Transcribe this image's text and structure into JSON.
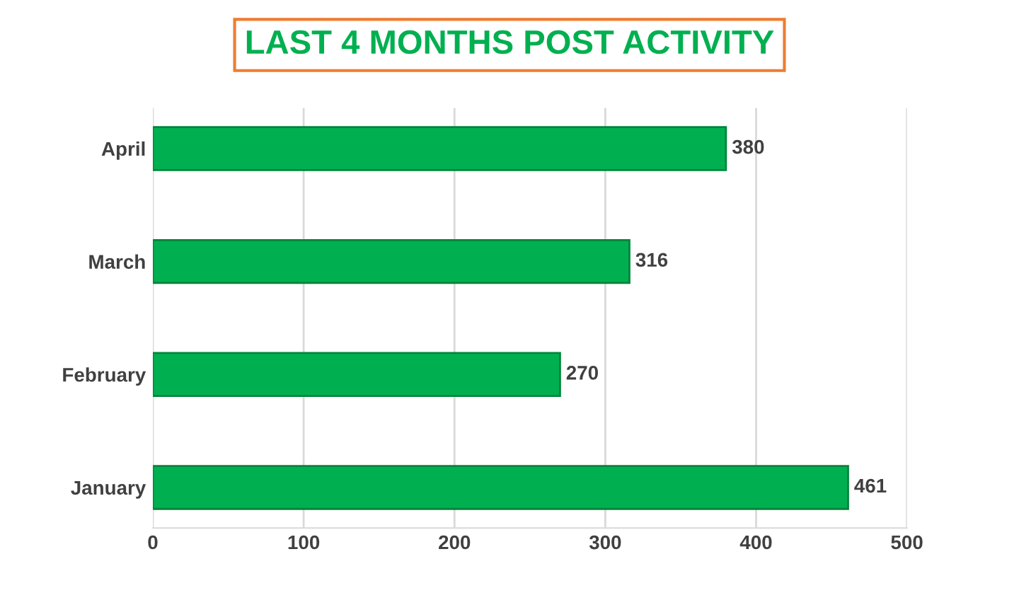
{
  "chart_data": {
    "type": "bar",
    "orientation": "horizontal",
    "title": "LAST 4 MONTHS POST ACTIVITY",
    "categories": [
      "April",
      "March",
      "February",
      "January"
    ],
    "values": [
      380,
      316,
      270,
      461
    ],
    "color": "#00b050",
    "xlim": [
      0,
      500
    ],
    "xticks": [
      0,
      100,
      200,
      300,
      400,
      500
    ],
    "grid": "x",
    "data_labels": true
  }
}
